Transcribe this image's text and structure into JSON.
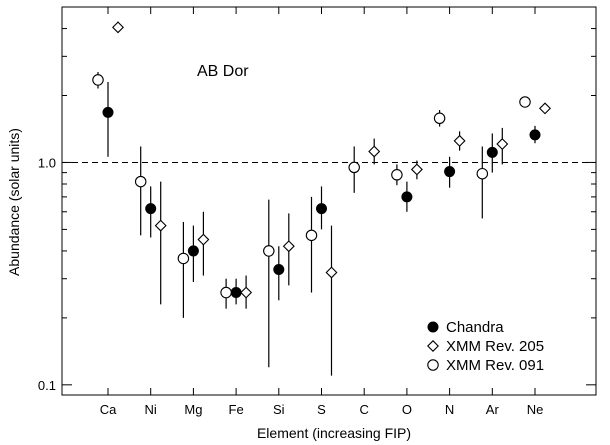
{
  "chart_data": {
    "type": "scatter",
    "title": "",
    "annotation": "AB Dor",
    "xlabel": "Element (increasing FIP)",
    "ylabel": "Abundance (solar units)",
    "y_scale": "log",
    "ylim": [
      0.09,
      5.0
    ],
    "y_ticks": [
      {
        "value": 0.1,
        "label": "0.1"
      },
      {
        "value": 1.0,
        "label": "1.0"
      }
    ],
    "reference_line": {
      "y": 1.0,
      "style": "dashed"
    },
    "categories": [
      "Ca",
      "Ni",
      "Mg",
      "Fe",
      "Si",
      "S",
      "C",
      "O",
      "N",
      "Ar",
      "Ne"
    ],
    "legend_position": "bottom-right",
    "series": [
      {
        "name": "Chandra",
        "marker": "filled-circle",
        "color": "#000000",
        "points": [
          {
            "x": "Ca",
            "y": 1.68,
            "lo": 1.06,
            "hi": 2.3
          },
          {
            "x": "Ni",
            "y": 0.62,
            "lo": 0.46,
            "hi": 0.78
          },
          {
            "x": "Mg",
            "y": 0.4,
            "lo": 0.29,
            "hi": 0.52
          },
          {
            "x": "Fe",
            "y": 0.26,
            "lo": 0.23,
            "hi": 0.3
          },
          {
            "x": "Si",
            "y": 0.33,
            "lo": 0.24,
            "hi": 0.42
          },
          {
            "x": "S",
            "y": 0.62,
            "lo": 0.5,
            "hi": 0.78
          },
          {
            "x": "O",
            "y": 0.7,
            "lo": 0.6,
            "hi": 0.82
          },
          {
            "x": "N",
            "y": 0.91,
            "lo": 0.77,
            "hi": 1.06
          },
          {
            "x": "Ar",
            "y": 1.11,
            "lo": 0.9,
            "hi": 1.35
          },
          {
            "x": "Ne",
            "y": 1.33,
            "lo": 1.22,
            "hi": 1.46
          }
        ]
      },
      {
        "name": "XMM Rev. 205",
        "marker": "open-diamond",
        "color": "#000000",
        "points": [
          {
            "x": "Ca",
            "y": 4.05,
            "lo": 3.85,
            "hi": 4.3
          },
          {
            "x": "Ni",
            "y": 0.52,
            "lo": 0.23,
            "hi": 0.82
          },
          {
            "x": "Mg",
            "y": 0.45,
            "lo": 0.31,
            "hi": 0.6
          },
          {
            "x": "Fe",
            "y": 0.26,
            "lo": 0.22,
            "hi": 0.31
          },
          {
            "x": "Si",
            "y": 0.42,
            "lo": 0.28,
            "hi": 0.59
          },
          {
            "x": "S",
            "y": 0.32,
            "lo": 0.11,
            "hi": 0.52
          },
          {
            "x": "C",
            "y": 1.12,
            "lo": 0.98,
            "hi": 1.28
          },
          {
            "x": "O",
            "y": 0.93,
            "lo": 0.84,
            "hi": 1.02
          },
          {
            "x": "N",
            "y": 1.25,
            "lo": 1.13,
            "hi": 1.38
          },
          {
            "x": "Ar",
            "y": 1.21,
            "lo": 0.98,
            "hi": 1.43
          },
          {
            "x": "Ne",
            "y": 1.75,
            "lo": 1.68,
            "hi": 1.83
          }
        ]
      },
      {
        "name": "XMM Rev. 091",
        "marker": "open-circle",
        "color": "#000000",
        "points": [
          {
            "x": "Ca",
            "y": 2.35,
            "lo": 2.15,
            "hi": 2.55
          },
          {
            "x": "Ni",
            "y": 0.82,
            "lo": 0.47,
            "hi": 1.18
          },
          {
            "x": "Mg",
            "y": 0.37,
            "lo": 0.2,
            "hi": 0.54
          },
          {
            "x": "Fe",
            "y": 0.26,
            "lo": 0.22,
            "hi": 0.3
          },
          {
            "x": "Si",
            "y": 0.4,
            "lo": 0.12,
            "hi": 0.68
          },
          {
            "x": "S",
            "y": 0.47,
            "lo": 0.26,
            "hi": 0.7
          },
          {
            "x": "C",
            "y": 0.95,
            "lo": 0.73,
            "hi": 1.18
          },
          {
            "x": "O",
            "y": 0.88,
            "lo": 0.79,
            "hi": 0.98
          },
          {
            "x": "N",
            "y": 1.58,
            "lo": 1.45,
            "hi": 1.72
          },
          {
            "x": "Ar",
            "y": 0.89,
            "lo": 0.56,
            "hi": 1.18
          },
          {
            "x": "Ne",
            "y": 1.87,
            "lo": 1.78,
            "hi": 1.96
          }
        ]
      }
    ]
  }
}
